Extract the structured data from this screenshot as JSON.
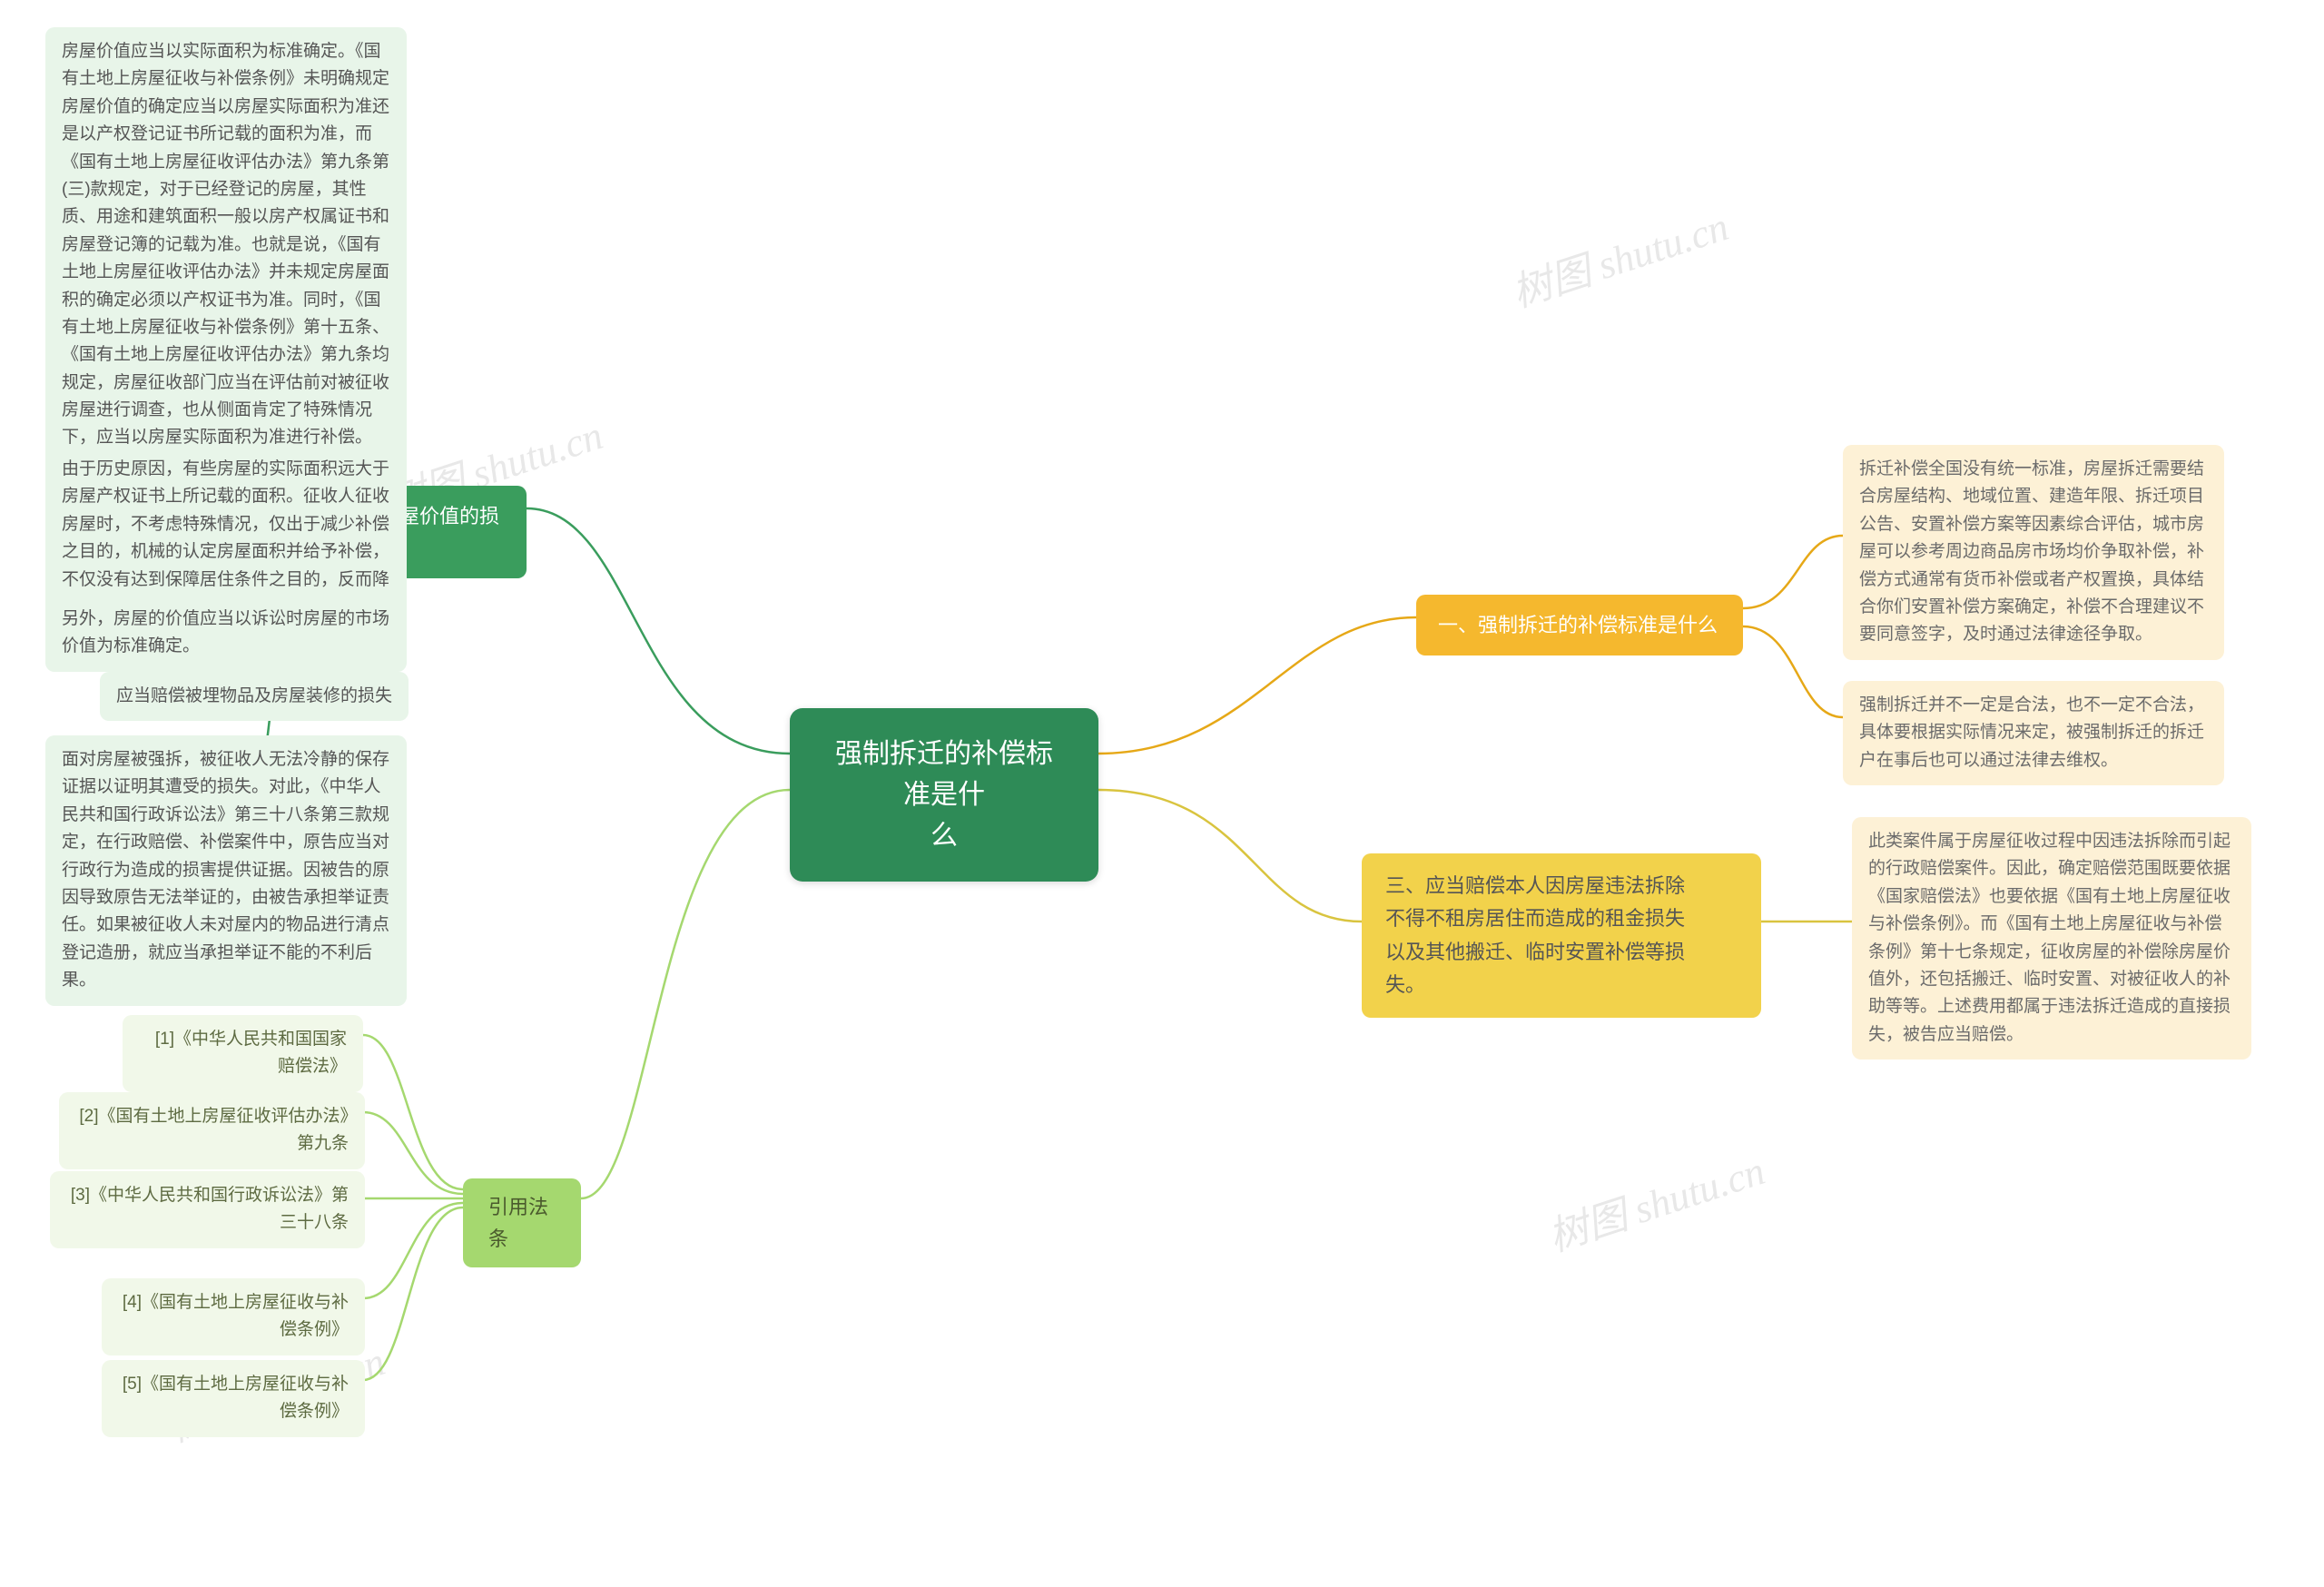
{
  "center": {
    "label": "强制拆迁的补偿标准是什\n么",
    "bg": "#2e8b57",
    "fg": "#ffffff"
  },
  "branch1": {
    "label": "一、强制拆迁的补偿标准是什么",
    "bg": "#f5b82e",
    "fg": "#ffffff",
    "leafA": "拆迁补偿全国没有统一标准，房屋拆迁需要结合房屋结构、地域位置、建造年限、拆迁项目公告、安置补偿方案等因素综合评估，城市房屋可以参考周边商品房市场均价争取补偿，补偿方式通常有货币补偿或者产权置换，具体结合你们安置补偿方案确定，补偿不合理建议不要同意签字，及时通过法律途径争取。",
    "leafB": "强制拆迁并不一定是合法，也不一定不合法，具体要根据实际情况来定，被强制拆迁的拆迁户在事后也可以通过法律去维权。"
  },
  "branch3": {
    "label": "三、应当赔偿本人因房屋违法拆除\n不得不租房居住而造成的租金损失\n以及其他搬迁、临时安置补偿等损\n失。",
    "bg": "#f2d24b",
    "fg": "#555555",
    "leafA": "此类案件属于房屋征收过程中因违法拆除而引起的行政赔偿案件。因此，确定赔偿范围既要依据《国家赔偿法》也要依据《国有土地上房屋征收与补偿条例》。而《国有土地上房屋征收与补偿条例》第十七条规定，征收房屋的补偿除房屋价值外，还包括搬迁、临时安置、对被征收人的补助等等。上述费用都属于违法拆迁造成的直接损失，被告应当赔偿。"
  },
  "branch2": {
    "label": "二、房屋价值的损失",
    "bg": "#3a9d5d",
    "fg": "#ffffff",
    "leafA": "房屋价值应当以实际面积为标准确定。《国有土地上房屋征收与补偿条例》未明确规定房屋价值的确定应当以房屋实际面积为准还是以产权登记证书所记载的面积为准，而《国有土地上房屋征收评估办法》第九条第(三)款规定，对于已经登记的房屋，其性质、用途和建筑面积一般以房产权属证书和房屋登记簿的记载为准。也就是说，《国有土地上房屋征收评估办法》并未规定房屋面积的确定必须以产权证书为准。同时，《国有土地上房屋征收与补偿条例》第十五条、《国有土地上房屋征收评估办法》第九条均规定，房屋征收部门应当在评估前对被征收房屋进行调查，也从侧面肯定了特殊情况下，应当以房屋实际面积为准进行补偿。",
    "leafB": "由于历史原因，有些房屋的实际面积远大于房屋产权证书上所记载的面积。征收人征收房屋时，不考虑特殊情况，仅出于减少补偿之目的，机械的认定房屋面积并给予补偿，不仅没有达到保障居住条件之目的，反而降低了生活水平。这种做法明显违反相关法律的立法本意。",
    "leafC": "另外，房屋的价值应当以诉讼时房屋的市场价值为标准确定。",
    "leafD": "应当赔偿被埋物品及房屋装修的损失",
    "leafE": "面对房屋被强拆，被征收人无法冷静的保存证据以证明其遭受的损失。对此，《中华人民共和国行政诉讼法》第三十八条第三款规定，在行政赔偿、补偿案件中，原告应当对行政行为造成的损害提供证据。因被告的原因导致原告无法举证的，由被告承担举证责任。如果被征收人未对屋内的物品进行清点登记造册，就应当承担举证不能的不利后果。"
  },
  "branchRef": {
    "label": "引用法条",
    "bg": "#a5d86f",
    "fg": "#4a5a2d",
    "refs": [
      "[1]《中华人民共和国国家赔偿法》",
      "[2]《国有土地上房屋征收评估办法》第九条",
      "[3]《中华人民共和国行政诉讼法》第三十八条",
      "[4]《国有土地上房屋征收与补偿条例》",
      "[5]《国有土地上房屋征收与补偿条例》"
    ]
  },
  "watermark": "树图 shutu.cn",
  "connectors": {
    "stroke": {
      "orange": "#e6a817",
      "yellow": "#d9c43f",
      "green": "#3a9d5d",
      "lightgreen": "#a5d86f"
    },
    "width": 2.5
  }
}
